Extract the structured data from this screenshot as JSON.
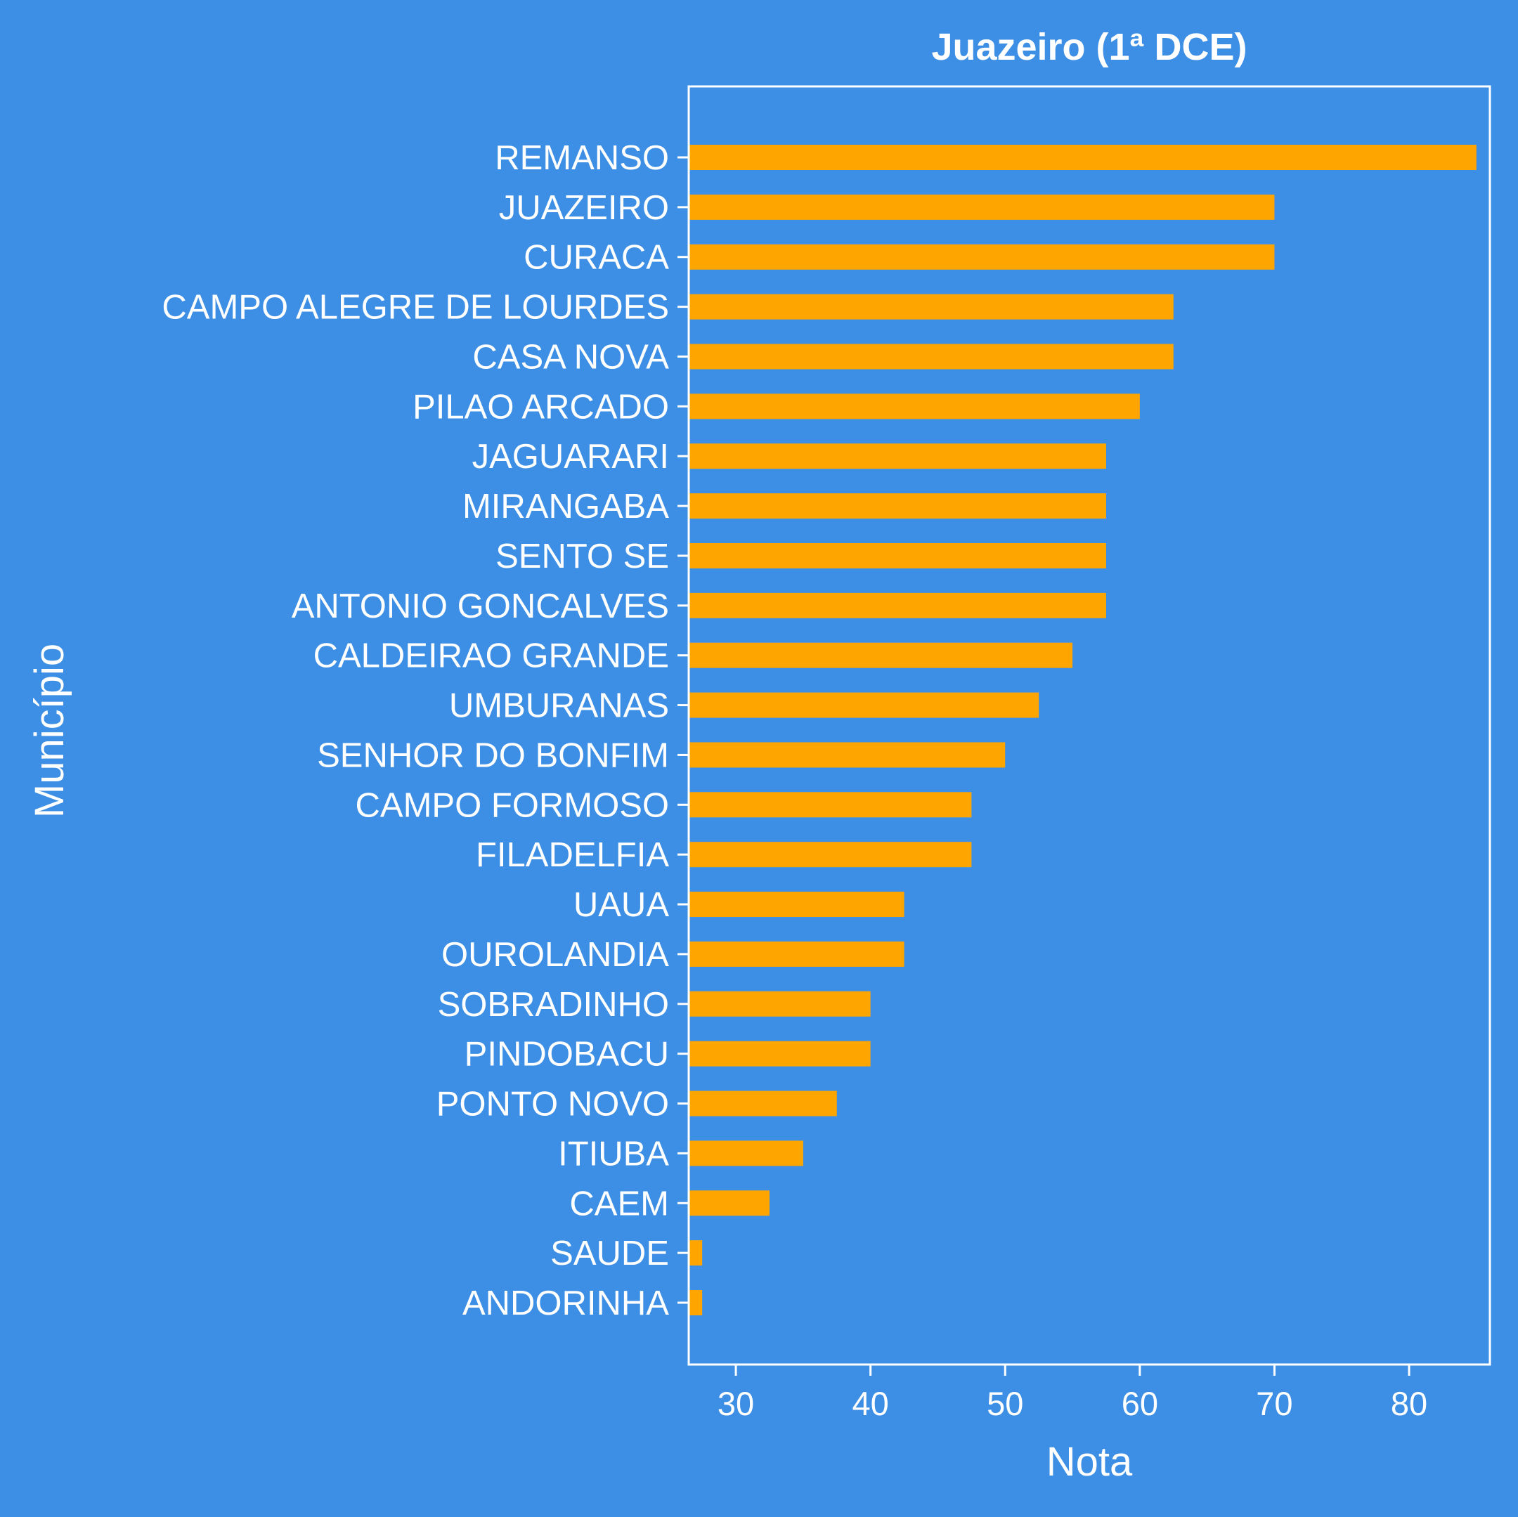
{
  "chart_data": {
    "type": "bar",
    "orientation": "horizontal",
    "title": "Juazeiro (1ª DCE)",
    "xlabel": "Nota",
    "ylabel": "Município",
    "categories": [
      "REMANSO",
      "JUAZEIRO",
      "CURACA",
      "CAMPO ALEGRE DE LOURDES",
      "CASA NOVA",
      "PILAO ARCADO",
      "JAGUARARI",
      "MIRANGABA",
      "SENTO SE",
      "ANTONIO GONCALVES",
      "CALDEIRAO GRANDE",
      "UMBURANAS",
      "SENHOR DO BONFIM",
      "CAMPO FORMOSO",
      "FILADELFIA",
      "UAUA",
      "OUROLANDIA",
      "SOBRADINHO",
      "PINDOBACU",
      "PONTO NOVO",
      "ITIUBA",
      "CAEM",
      "SAUDE",
      "ANDORINHA"
    ],
    "values": [
      85,
      70,
      70,
      62.5,
      62.5,
      60,
      57.5,
      57.5,
      57.5,
      57.5,
      55,
      52.5,
      50,
      47.5,
      47.5,
      42.5,
      42.5,
      40,
      40,
      37.5,
      35,
      32.5,
      27.5,
      27.5
    ],
    "xticks": [
      "30",
      "40",
      "50",
      "60",
      "70",
      "80"
    ],
    "xlim": [
      26.5,
      86
    ],
    "grid": false,
    "legend": "none",
    "colors": {
      "background": "#3d8fe5",
      "bar": "#ffa500",
      "text": "#ffffff",
      "axes": "#ffffff"
    }
  }
}
